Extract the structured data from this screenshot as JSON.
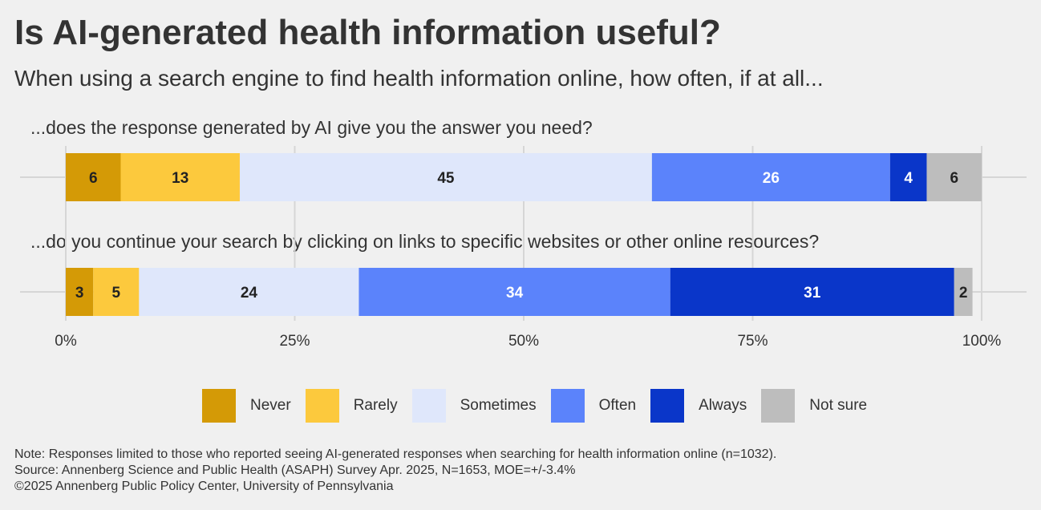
{
  "title": "Is AI-generated health information useful?",
  "subtitle": "When using a search engine to find health information online, how often, if at all...",
  "chart_data": {
    "type": "bar",
    "orientation": "horizontal-stacked-100",
    "xlim": [
      0,
      100
    ],
    "xticks": [
      "0%",
      "25%",
      "50%",
      "75%",
      "100%"
    ],
    "grid": true,
    "legend_position": "bottom",
    "categories": [
      "...does the response generated by AI give you the answer you need?",
      "...do you continue your search by clicking on links to specific websites or other online resources?"
    ],
    "series": [
      {
        "name": "Never",
        "color": "#d49a06",
        "label_color": "#222222",
        "values": [
          6,
          3
        ]
      },
      {
        "name": "Rarely",
        "color": "#fcc93d",
        "label_color": "#222222",
        "values": [
          13,
          5
        ]
      },
      {
        "name": "Sometimes",
        "color": "#dfe7fb",
        "label_color": "#222222",
        "values": [
          45,
          24
        ]
      },
      {
        "name": "Often",
        "color": "#5b83fb",
        "label_color": "#ffffff",
        "values": [
          26,
          34
        ]
      },
      {
        "name": "Always",
        "color": "#0a36c9",
        "label_color": "#ffffff",
        "values": [
          4,
          31
        ]
      },
      {
        "name": "Not sure",
        "color": "#bdbdbd",
        "label_color": "#222222",
        "values": [
          6,
          2
        ]
      }
    ]
  },
  "notes": [
    "Note: Responses limited to those who reported seeing AI-generated responses when searching for health information online (n=1032).",
    "Source: Annenberg Science and Public Health (ASAPH) Survey Apr. 2025, N=1653, MOE=+/-3.4%",
    "©2025 Annenberg Public Policy Center, University of Pennsylvania"
  ]
}
